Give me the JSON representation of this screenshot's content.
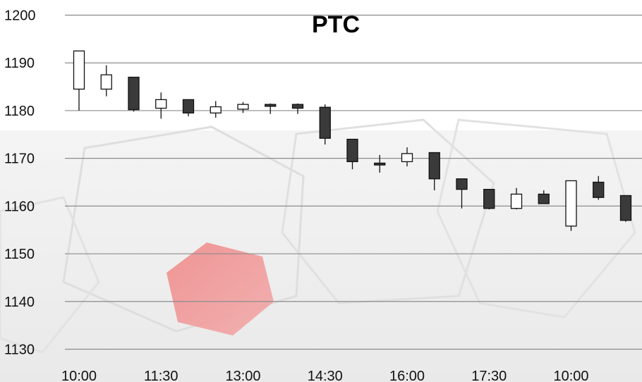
{
  "chart_data": {
    "type": "candlestick",
    "title": "PTC",
    "xlabel": "",
    "ylabel": "",
    "ylim": [
      1130,
      1200
    ],
    "y_ticks": [
      1200,
      1190,
      1180,
      1170,
      1160,
      1150,
      1140,
      1130
    ],
    "x_tick_labels": [
      "10:00",
      "11:30",
      "13:00",
      "14:30",
      "16:00",
      "17:30",
      "10:00"
    ],
    "grid": "horizontal",
    "colors": {
      "up": "#ffffff",
      "down": "#3a3a3a",
      "outline": "#111111",
      "grid": "#8c8c8c"
    },
    "candles": [
      {
        "open": 1184.5,
        "high": 1192.5,
        "low": 1180.0,
        "close": 1192.5
      },
      {
        "open": 1184.5,
        "high": 1189.5,
        "low": 1183.0,
        "close": 1187.5
      },
      {
        "open": 1187.0,
        "high": 1187.0,
        "low": 1179.8,
        "close": 1180.2
      },
      {
        "open": 1180.5,
        "high": 1183.8,
        "low": 1178.3,
        "close": 1182.3
      },
      {
        "open": 1182.3,
        "high": 1182.3,
        "low": 1178.8,
        "close": 1179.5
      },
      {
        "open": 1179.5,
        "high": 1182.0,
        "low": 1178.5,
        "close": 1180.8
      },
      {
        "open": 1180.3,
        "high": 1181.8,
        "low": 1179.5,
        "close": 1181.3
      },
      {
        "open": 1181.3,
        "high": 1181.5,
        "low": 1179.3,
        "close": 1180.9
      },
      {
        "open": 1181.3,
        "high": 1181.5,
        "low": 1179.3,
        "close": 1180.5
      },
      {
        "open": 1180.7,
        "high": 1181.3,
        "low": 1172.9,
        "close": 1174.2
      },
      {
        "open": 1174.0,
        "high": 1174.0,
        "low": 1167.7,
        "close": 1169.3
      },
      {
        "open": 1169.0,
        "high": 1170.7,
        "low": 1167.0,
        "close": 1168.6
      },
      {
        "open": 1169.3,
        "high": 1172.3,
        "low": 1168.3,
        "close": 1171.0
      },
      {
        "open": 1171.2,
        "high": 1171.2,
        "low": 1163.3,
        "close": 1165.7
      },
      {
        "open": 1165.7,
        "high": 1165.7,
        "low": 1159.5,
        "close": 1163.5
      },
      {
        "open": 1163.5,
        "high": 1163.5,
        "low": 1159.3,
        "close": 1159.5
      },
      {
        "open": 1159.5,
        "high": 1163.8,
        "low": 1159.3,
        "close": 1162.5
      },
      {
        "open": 1162.5,
        "high": 1163.3,
        "low": 1160.5,
        "close": 1160.5
      },
      {
        "open": 1155.8,
        "high": 1165.3,
        "low": 1154.8,
        "close": 1165.3
      },
      {
        "open": 1165.0,
        "high": 1166.3,
        "low": 1161.3,
        "close": 1161.8
      },
      {
        "open": 1162.2,
        "high": 1162.2,
        "low": 1156.7,
        "close": 1157.0
      }
    ]
  }
}
